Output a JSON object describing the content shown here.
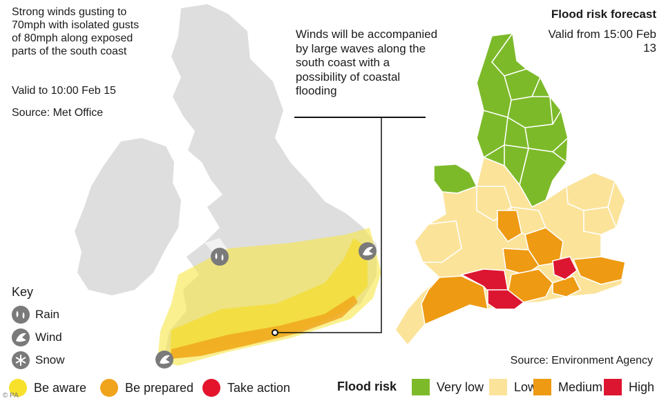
{
  "weather_map": {
    "description_text": "Strong winds gusting to 70mph with isolated gusts of 80mph along exposed parts of the south coast",
    "valid_to": "Valid to 10:00 Feb 15",
    "source": "Source: Met Office",
    "callout": "Winds will be accompanied by large waves along the south coast with a possibility of coastal flooding",
    "key": {
      "title": "Key",
      "items": [
        {
          "label": "Rain",
          "icon": "rain-icon"
        },
        {
          "label": "Wind",
          "icon": "wind-icon"
        },
        {
          "label": "Snow",
          "icon": "snow-icon"
        }
      ]
    },
    "warning_levels": [
      {
        "label": "Be aware",
        "color": "#f7e12a"
      },
      {
        "label": "Be prepared",
        "color": "#f0a41c"
      },
      {
        "label": "Take action",
        "color": "#e3142c"
      }
    ]
  },
  "flood_map": {
    "title": "Flood risk forecast",
    "valid_from": "Valid from 15:00 Feb 13",
    "source": "Source: Environment Agency",
    "legend_title": "Flood risk",
    "levels": [
      {
        "label": "Very low",
        "color": "#7dba2a"
      },
      {
        "label": "Low",
        "color": "#fbe39a"
      },
      {
        "label": "Medium",
        "color": "#ee9a12"
      },
      {
        "label": "High",
        "color": "#dc1630"
      }
    ]
  },
  "credit": "© PA"
}
